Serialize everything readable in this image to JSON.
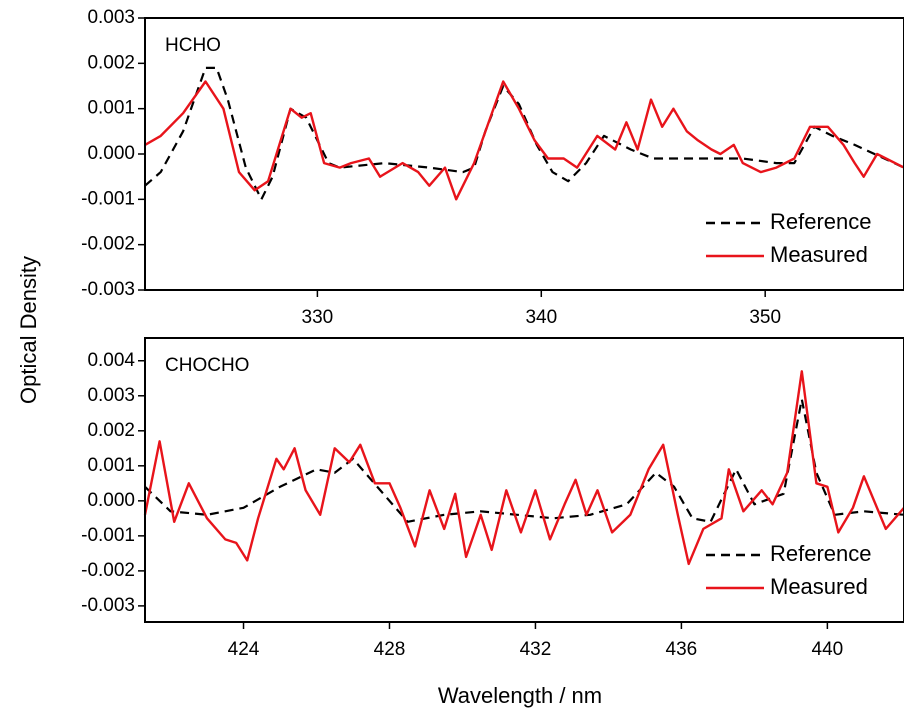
{
  "chart_data": [
    {
      "type": "line",
      "label": "HCHO",
      "ylabel": "Optical Density",
      "xlim": [
        322.3,
        356.2
      ],
      "ylim": [
        -0.003,
        0.003
      ],
      "xticks": [
        330,
        340,
        350
      ],
      "yticks": [
        -0.003,
        -0.002,
        -0.001,
        {
          "value": 0,
          "label": "0.000"
        },
        0.001,
        0.002,
        0.003
      ],
      "legend": "lower right",
      "series": [
        {
          "name": "Reference",
          "color": "#000000",
          "linestyle": "dashed",
          "x": [
            322.3,
            323,
            324,
            325,
            325.5,
            326,
            326.8,
            327.5,
            328,
            328.8,
            329.5,
            330.5,
            331,
            333,
            335,
            336.5,
            337,
            337.5,
            338.3,
            339,
            339.8,
            340.5,
            341.2,
            342,
            342.8,
            344,
            345,
            347,
            349,
            350.5,
            351.3,
            352.2,
            353,
            354,
            356.2
          ],
          "values": [
            -0.0007,
            -0.0004,
            0.0005,
            0.0019,
            0.0019,
            0.0012,
            -0.0003,
            -0.001,
            -0.0005,
            0.001,
            0.0008,
            -0.0002,
            -0.0003,
            -0.0002,
            -0.0003,
            -0.0004,
            -0.0003,
            0.0005,
            0.0015,
            0.0011,
            0.0002,
            -0.0004,
            -0.0006,
            -0.0002,
            0.0004,
            0.0001,
            -0.0001,
            -0.0001,
            -0.0001,
            -0.0002,
            -0.0002,
            0.0006,
            0.0004,
            0.0002,
            -0.0003
          ]
        },
        {
          "name": "Measured",
          "color": "#e8141b",
          "linestyle": "solid",
          "x": [
            322.3,
            323,
            324,
            325,
            325.8,
            326.5,
            327.2,
            327.8,
            328.8,
            329.3,
            329.7,
            330.3,
            331,
            331.5,
            332.3,
            332.8,
            333.8,
            334.5,
            335,
            335.7,
            336.2,
            337,
            338.3,
            339,
            339.7,
            340.3,
            341,
            341.6,
            342.5,
            343.3,
            343.8,
            344.3,
            344.9,
            345.4,
            345.9,
            346.5,
            347,
            347.6,
            348,
            348.6,
            349,
            349.8,
            350.5,
            351.3,
            352,
            352.8,
            353.5,
            354,
            354.4,
            355,
            356.2
          ],
          "values": [
            0.0002,
            0.0004,
            0.0009,
            0.0016,
            0.001,
            -0.0004,
            -0.0008,
            -0.0006,
            0.001,
            0.0008,
            0.0009,
            -0.0002,
            -0.0003,
            -0.0002,
            -0.0001,
            -0.0005,
            -0.0002,
            -0.0004,
            -0.0007,
            -0.0003,
            -0.001,
            -0.0002,
            0.0016,
            0.001,
            0.0003,
            -0.0001,
            -0.0001,
            -0.0003,
            0.0004,
            0.0001,
            0.0007,
            0.0001,
            0.0012,
            0.0006,
            0.001,
            0.0005,
            0.0003,
            0.0001,
            0,
            0.0002,
            -0.0002,
            -0.0004,
            -0.0003,
            -0.0001,
            0.0006,
            0.0006,
            0.0002,
            -0.0002,
            -0.0005,
            0,
            -0.0003
          ]
        }
      ]
    },
    {
      "type": "line",
      "label": "CHOCHO",
      "xlabel": "Wavelength / nm",
      "xlim": [
        421.3,
        442.1
      ],
      "ylim": [
        -0.00346,
        0.00465
      ],
      "xticks": [
        424,
        428,
        432,
        436,
        440
      ],
      "yticks": [
        -0.003,
        -0.002,
        -0.001,
        {
          "value": 0,
          "label": "0.000"
        },
        0.001,
        0.002,
        0.003,
        0.004
      ],
      "legend": "lower right",
      "series": [
        {
          "name": "Reference",
          "color": "#000000",
          "linestyle": "dashed",
          "x": [
            421.3,
            422,
            423,
            424,
            425,
            426,
            426.5,
            427,
            427.5,
            428.5,
            429.5,
            430.5,
            431.5,
            432.5,
            433.5,
            434.5,
            435.3,
            435.8,
            436.3,
            436.8,
            437.5,
            438,
            438.8,
            439.3,
            439.7,
            440.2,
            441,
            442.1
          ],
          "values": [
            0.0004,
            -0.0003,
            -0.0004,
            -0.0002,
            0.0004,
            0.0009,
            0.0008,
            0.0012,
            0.0006,
            -0.0006,
            -0.0004,
            -0.0003,
            -0.0004,
            -0.0005,
            -0.0004,
            -0.0001,
            0.0008,
            0.0004,
            -0.0005,
            -0.0006,
            0.0009,
            -0.0001,
            0.0002,
            0.0029,
            0.0008,
            -0.0004,
            -0.0003,
            -0.0004
          ]
        },
        {
          "name": "Measured",
          "color": "#e8141b",
          "linestyle": "solid",
          "x": [
            421.3,
            421.7,
            422.1,
            422.5,
            423,
            423.5,
            423.8,
            424.1,
            424.4,
            424.9,
            425.1,
            425.4,
            425.7,
            426.1,
            426.5,
            426.9,
            427.2,
            427.6,
            428,
            428.3,
            428.7,
            429.1,
            429.5,
            429.8,
            430.1,
            430.5,
            430.8,
            431.2,
            431.6,
            432,
            432.4,
            432.8,
            433.1,
            433.4,
            433.7,
            434.1,
            434.6,
            435.1,
            435.5,
            435.9,
            436.2,
            436.6,
            437.1,
            437.3,
            437.7,
            438.2,
            438.5,
            438.9,
            439.3,
            439.7,
            440,
            440.3,
            440.7,
            441,
            441.6,
            442.1
          ],
          "values": [
            -0.0004,
            0.0017,
            -0.0006,
            0.0005,
            -0.0005,
            -0.0011,
            -0.0012,
            -0.0017,
            -0.0005,
            0.0012,
            0.0009,
            0.0015,
            0.0003,
            -0.0004,
            0.0015,
            0.0011,
            0.0016,
            0.0005,
            0.0005,
            -0.0002,
            -0.0013,
            0.0003,
            -0.0008,
            0.0002,
            -0.0016,
            -0.0004,
            -0.0014,
            0.0003,
            -0.0009,
            0.0003,
            -0.0011,
            -0.0001,
            0.0006,
            -0.0004,
            0.0003,
            -0.0009,
            -0.0004,
            0.0009,
            0.0016,
            -0.0004,
            -0.0018,
            -0.0008,
            -0.0005,
            0.0009,
            -0.0003,
            0.0003,
            -0.0001,
            0.0008,
            0.0037,
            0.0005,
            0.0004,
            -0.0009,
            -0.0002,
            0.0007,
            -0.0008,
            -0.0002
          ]
        }
      ]
    }
  ]
}
